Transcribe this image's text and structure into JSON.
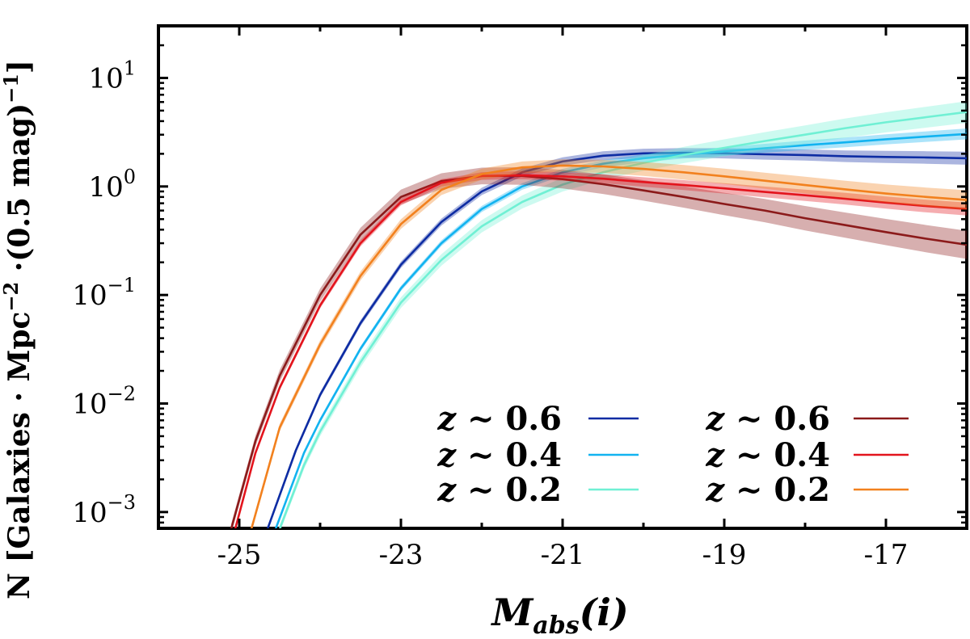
{
  "chart_data": {
    "type": "line",
    "title": "",
    "xlabel": "M_abs(i)",
    "xlabel_main": "M",
    "xlabel_sub": "abs",
    "xlabel_arg": "(i)",
    "ylabel": "N [Galaxies · Mpc⁻² ·(0.5 mag)⁻¹]",
    "ylabel_main": "N [Galaxies · Mpc",
    "ylabel_exp1": "−2",
    "ylabel_mid": " ·(0.5 mag)",
    "ylabel_exp2": "−1",
    "ylabel_end": "]",
    "yscale": "log",
    "xlim": [
      -26.0,
      -16.0
    ],
    "ylim_log10": [
      -3.15,
      1.48
    ],
    "x_ticks": [
      -25,
      -23,
      -21,
      -19,
      -17
    ],
    "x_tick_labels": [
      "-25",
      "-23",
      "-21",
      "-19",
      "-17"
    ],
    "y_ticks": [
      {
        "exp": 1,
        "base": "10",
        "sup": "1"
      },
      {
        "exp": 0,
        "base": "10",
        "sup": "0"
      },
      {
        "exp": -1,
        "base": "10",
        "sup": "−1"
      },
      {
        "exp": -2,
        "base": "10",
        "sup": "−2"
      },
      {
        "exp": -3,
        "base": "10",
        "sup": "−3"
      }
    ],
    "legend_position": "lower-right",
    "series": [
      {
        "name": "z ~ 0.6",
        "group": "left",
        "color": "#0d2ca3",
        "band": 0.06,
        "x": [
          -24.65,
          -24.3,
          -24.0,
          -23.5,
          -23.0,
          -22.5,
          -22.0,
          -21.5,
          -21.0,
          -20.5,
          -20.0,
          -19.5,
          -19.0,
          -18.5,
          -18.0,
          -17.5,
          -17.0,
          -16.5,
          -16.0
        ],
        "y": [
          0.0007,
          0.0037,
          0.012,
          0.055,
          0.19,
          0.47,
          0.9,
          1.35,
          1.7,
          1.92,
          2.02,
          2.04,
          2.02,
          1.98,
          1.95,
          1.9,
          1.87,
          1.85,
          1.82
        ]
      },
      {
        "name": "z ~ 0.4",
        "group": "left",
        "color": "#12b3f0",
        "band": 0.05,
        "x": [
          -24.55,
          -24.2,
          -24.0,
          -23.5,
          -23.0,
          -22.5,
          -22.0,
          -21.5,
          -21.0,
          -20.5,
          -20.0,
          -19.5,
          -19.0,
          -18.5,
          -18.0,
          -17.5,
          -17.0,
          -16.5,
          -16.0
        ],
        "y": [
          0.0007,
          0.0035,
          0.007,
          0.032,
          0.115,
          0.3,
          0.62,
          1.0,
          1.35,
          1.62,
          1.82,
          1.97,
          2.1,
          2.25,
          2.4,
          2.55,
          2.72,
          2.88,
          3.05
        ]
      },
      {
        "name": "z ~ 0.2",
        "group": "left",
        "color": "#70f0d4",
        "band": 0.1,
        "x": [
          -24.5,
          -24.2,
          -24.0,
          -23.5,
          -23.0,
          -22.5,
          -22.0,
          -21.5,
          -21.0,
          -20.5,
          -20.0,
          -19.5,
          -19.0,
          -18.5,
          -18.0,
          -17.5,
          -17.0,
          -16.5,
          -16.0
        ],
        "y": [
          0.0007,
          0.0027,
          0.0055,
          0.024,
          0.085,
          0.21,
          0.43,
          0.72,
          1.04,
          1.35,
          1.65,
          1.95,
          2.27,
          2.62,
          3.0,
          3.45,
          3.9,
          4.35,
          4.85
        ]
      },
      {
        "name": "z ~ 0.6",
        "group": "right",
        "color": "#8b1a1a",
        "band": 0.13,
        "x": [
          -25.1,
          -24.8,
          -24.5,
          -24.0,
          -23.5,
          -23.0,
          -22.5,
          -22.0,
          -21.5,
          -21.0,
          -20.5,
          -20.0,
          -19.5,
          -19.0,
          -18.5,
          -18.0,
          -17.5,
          -17.0,
          -16.5,
          -16.0
        ],
        "y": [
          0.0007,
          0.0045,
          0.018,
          0.1,
          0.36,
          0.8,
          1.12,
          1.25,
          1.25,
          1.17,
          1.05,
          0.92,
          0.8,
          0.69,
          0.6,
          0.51,
          0.44,
          0.38,
          0.33,
          0.29
        ]
      },
      {
        "name": "z ~ 0.4",
        "group": "right",
        "color": "#e3141d",
        "band": 0.06,
        "x": [
          -25.05,
          -24.8,
          -24.5,
          -24.0,
          -23.5,
          -23.0,
          -22.5,
          -22.0,
          -21.5,
          -21.0,
          -20.5,
          -20.0,
          -19.5,
          -19.0,
          -18.5,
          -18.0,
          -17.5,
          -17.0,
          -16.5,
          -16.0
        ],
        "y": [
          0.0007,
          0.0035,
          0.014,
          0.08,
          0.3,
          0.72,
          1.08,
          1.25,
          1.27,
          1.24,
          1.18,
          1.1,
          1.03,
          0.96,
          0.89,
          0.83,
          0.77,
          0.71,
          0.66,
          0.62
        ]
      },
      {
        "name": "z ~ 0.2",
        "group": "right",
        "color": "#f2811e",
        "band": 0.09,
        "x": [
          -24.85,
          -24.5,
          -24.0,
          -23.5,
          -23.0,
          -22.5,
          -22.0,
          -21.5,
          -21.0,
          -20.5,
          -20.0,
          -19.5,
          -19.0,
          -18.5,
          -18.0,
          -17.5,
          -17.0,
          -16.5,
          -16.0
        ],
        "y": [
          0.0007,
          0.006,
          0.035,
          0.15,
          0.45,
          0.93,
          1.3,
          1.5,
          1.56,
          1.53,
          1.45,
          1.35,
          1.24,
          1.13,
          1.03,
          0.94,
          0.86,
          0.8,
          0.75
        ]
      }
    ]
  }
}
